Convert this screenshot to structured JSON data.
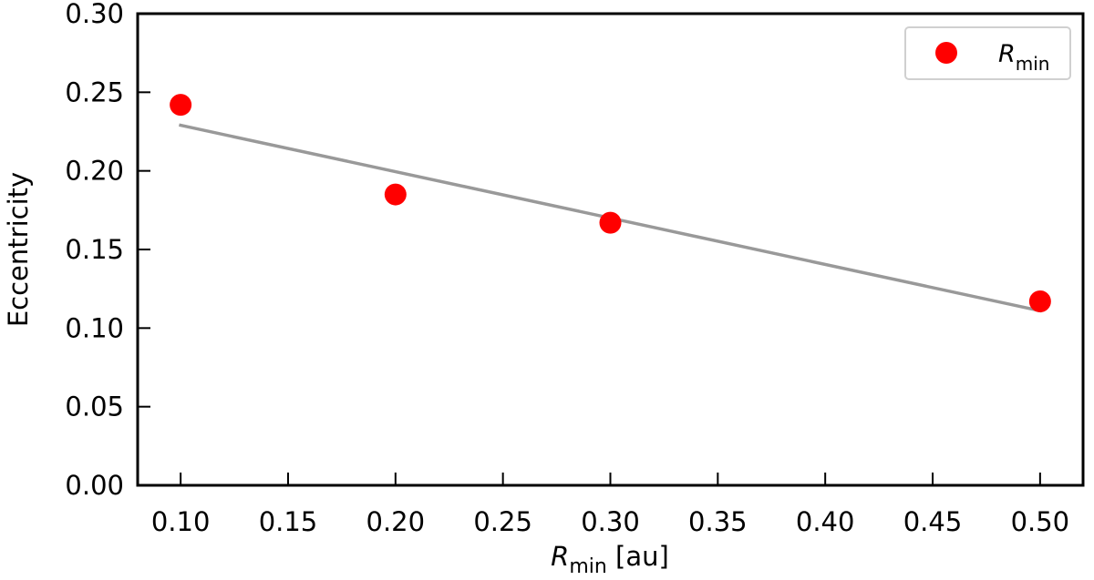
{
  "chart_data": {
    "type": "scatter",
    "title": "",
    "xlabel": {
      "symbol": "R",
      "subscript": "min",
      "unit": "[au]"
    },
    "ylabel": "Eccentricity",
    "xlim": [
      0.08,
      0.52
    ],
    "ylim": [
      0.0,
      0.3
    ],
    "xticks": [
      0.1,
      0.15,
      0.2,
      0.25,
      0.3,
      0.35,
      0.4,
      0.45,
      0.5
    ],
    "xtick_labels": [
      "0.10",
      "0.15",
      "0.20",
      "0.25",
      "0.30",
      "0.35",
      "0.40",
      "0.45",
      "0.50"
    ],
    "yticks": [
      0.0,
      0.05,
      0.1,
      0.15,
      0.2,
      0.25,
      0.3
    ],
    "ytick_labels": [
      "0.00",
      "0.05",
      "0.10",
      "0.15",
      "0.20",
      "0.25",
      "0.30"
    ],
    "grid": false,
    "legend_position": "top-right",
    "series": [
      {
        "name": {
          "symbol": "R",
          "subscript": "min"
        },
        "type": "scatter",
        "color": "#ff0000",
        "x": [
          0.1,
          0.2,
          0.3,
          0.5
        ],
        "y": [
          0.242,
          0.185,
          0.167,
          0.117
        ]
      },
      {
        "type": "line",
        "color": "#999999",
        "x": [
          0.1,
          0.5
        ],
        "y": [
          0.229,
          0.111
        ]
      }
    ]
  }
}
